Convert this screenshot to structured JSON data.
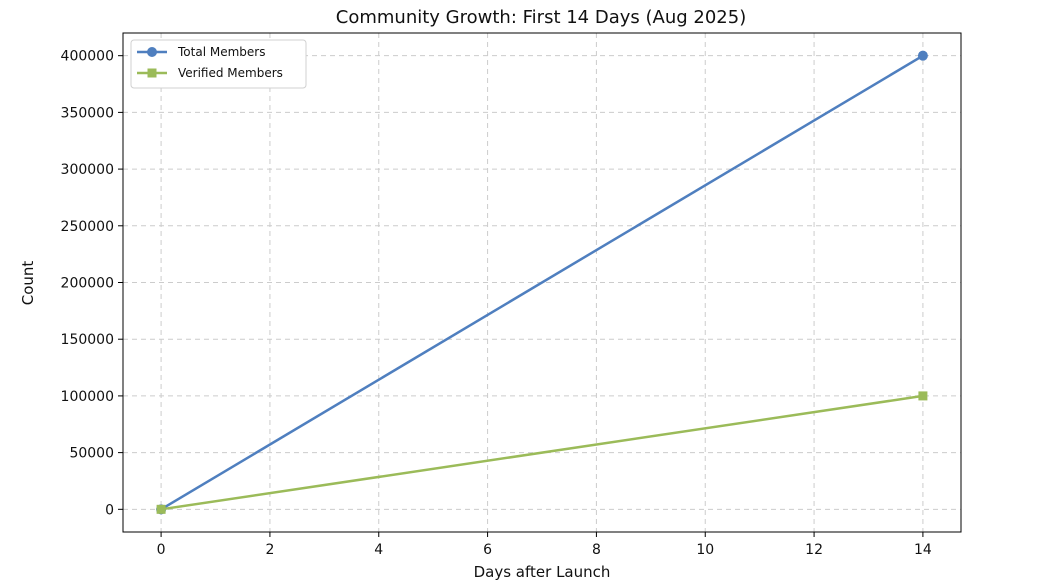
{
  "chart_data": {
    "type": "line",
    "title": "Community Growth: First 14 Days (Aug 2025)",
    "xlabel": "Days after Launch",
    "ylabel": "Count",
    "xlim": [
      -0.7,
      14.7
    ],
    "ylim": [
      -20000,
      420000
    ],
    "xticks": [
      0,
      2,
      4,
      6,
      8,
      10,
      12,
      14
    ],
    "yticks": [
      0,
      50000,
      100000,
      150000,
      200000,
      250000,
      300000,
      350000,
      400000
    ],
    "grid": true,
    "legend_position": "top-left",
    "series": [
      {
        "name": "Total Members",
        "x": [
          0,
          14
        ],
        "y": [
          0,
          400000
        ],
        "color": "#4f7fbf",
        "marker": "circle"
      },
      {
        "name": "Verified Members",
        "x": [
          0,
          14
        ],
        "y": [
          0,
          100000
        ],
        "color": "#9bbb59",
        "marker": "square"
      }
    ]
  }
}
